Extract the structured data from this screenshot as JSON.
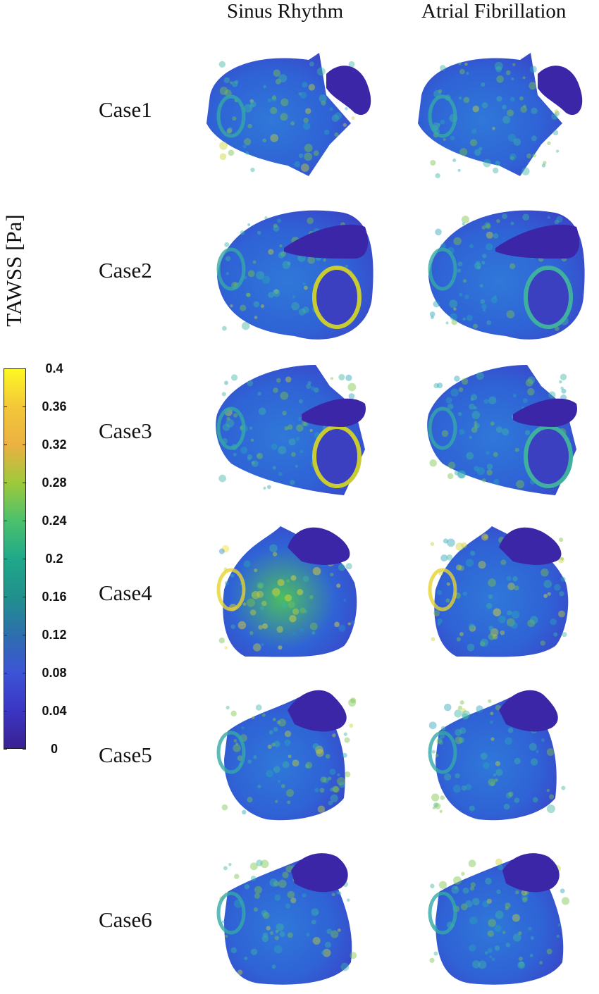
{
  "columns": [
    "Sinus Rhythm",
    "Atrial Fibrillation"
  ],
  "cases": [
    "Case1",
    "Case2",
    "Case3",
    "Case4",
    "Case5",
    "Case6"
  ],
  "colorbar": {
    "title": "TAWSS [Pa]",
    "ticks": [
      "0.4",
      "0.36",
      "0.32",
      "0.28",
      "0.24",
      "0.2",
      "0.16",
      "0.12",
      "0.08",
      "0.04",
      "0"
    ],
    "colormap": [
      "#fdf822",
      "#f3c73a",
      "#ebb142",
      "#9ec93b",
      "#4bc16d",
      "#1fa88a",
      "#20918c",
      "#2d6fad",
      "#3d54d6",
      "#3b36c4",
      "#3a2092"
    ]
  }
}
